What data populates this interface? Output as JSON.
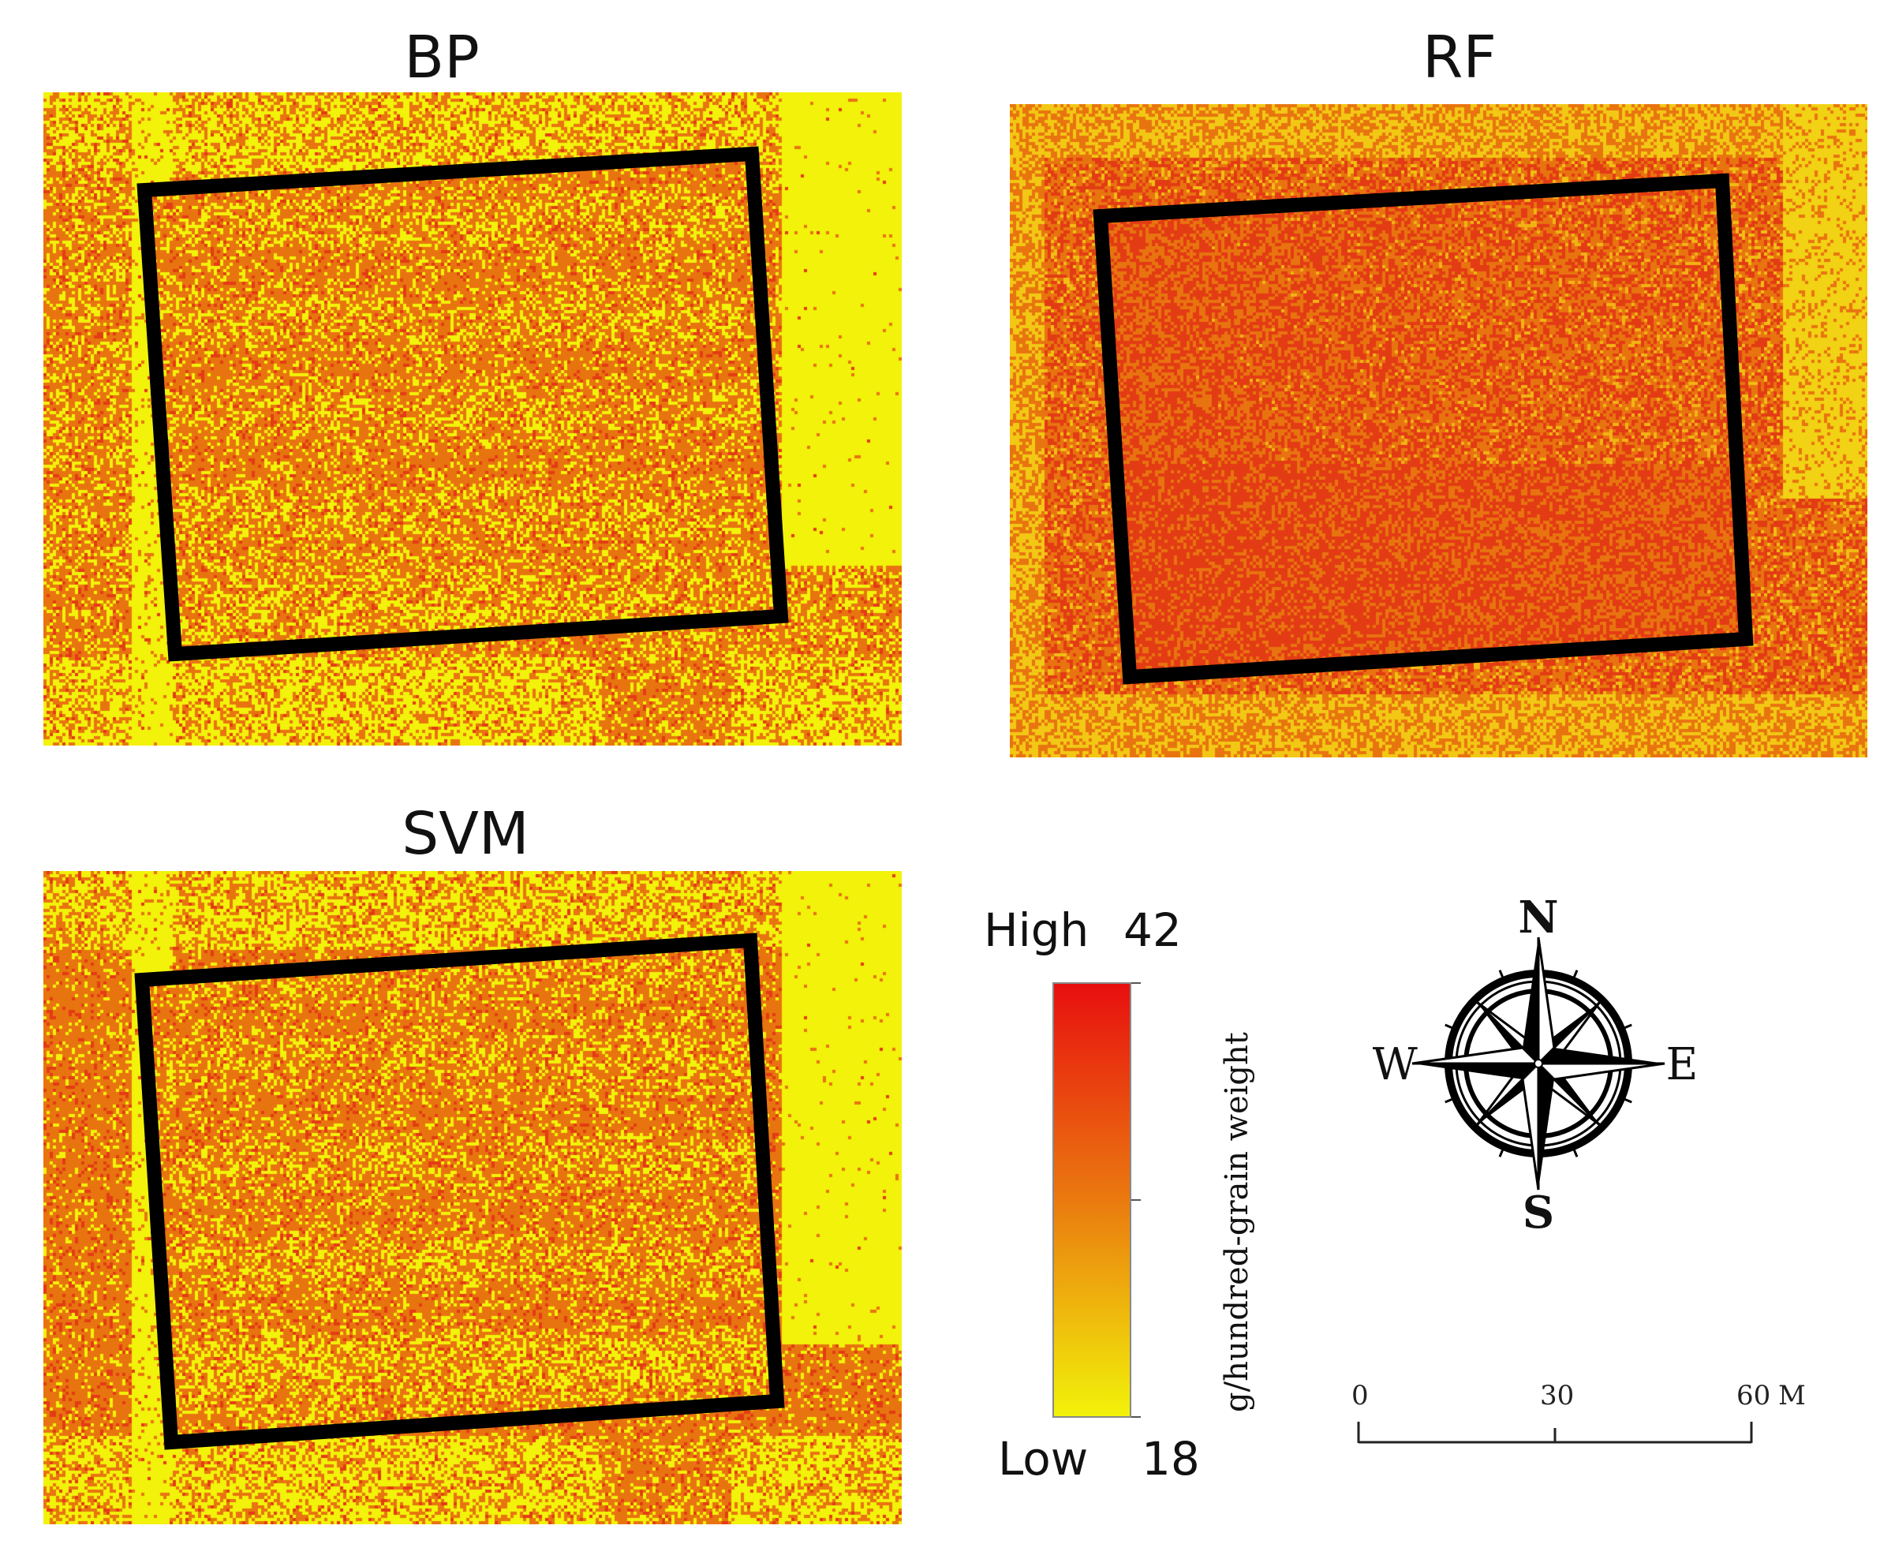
{
  "panels": [
    {
      "title": "BP",
      "palette": "bp"
    },
    {
      "title": "RF",
      "palette": "rf"
    },
    {
      "title": "SVM",
      "palette": "svm"
    }
  ],
  "legend": {
    "high_label": "High",
    "high_value": "42",
    "low_label": "Low",
    "low_value": "18",
    "unit": "g/hundred-grain weight",
    "color_high": "#e80f0f",
    "color_mid": "#ea7a0f",
    "color_low": "#f2f20a"
  },
  "compass": {
    "n": "N",
    "e": "E",
    "s": "S",
    "w": "W"
  },
  "scale_bar": {
    "labels": [
      "0",
      "30",
      "60"
    ],
    "unit": "M"
  },
  "colors": {
    "field_yellow": "#f2f20a",
    "field_orange": "#e8740f",
    "field_red": "#e33b14",
    "outline": "#000000"
  }
}
